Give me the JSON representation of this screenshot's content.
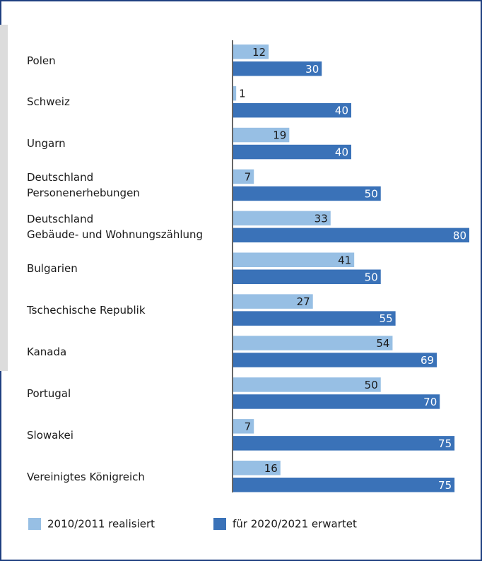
{
  "chart_data": {
    "type": "bar",
    "orientation": "horizontal",
    "categories": [
      "Polen",
      "Schweiz",
      "Ungarn",
      "Deutschland\nPersonenerhebungen",
      "Deutschland\nGebäude- und Wohnungszählung",
      "Bulgarien",
      "Tschechische Republik",
      "Kanada",
      "Portugal",
      "Slowakei",
      "Vereinigtes Königreich"
    ],
    "series": [
      {
        "name": "2010/2011 realisiert",
        "color": "#97bfe4",
        "values": [
          12,
          1,
          19,
          7,
          33,
          41,
          27,
          54,
          50,
          7,
          16
        ]
      },
      {
        "name": "für 2020/2021 erwartet",
        "color": "#3a72b8",
        "values": [
          30,
          40,
          40,
          50,
          80,
          50,
          55,
          69,
          70,
          75,
          75
        ]
      }
    ]
  }
}
